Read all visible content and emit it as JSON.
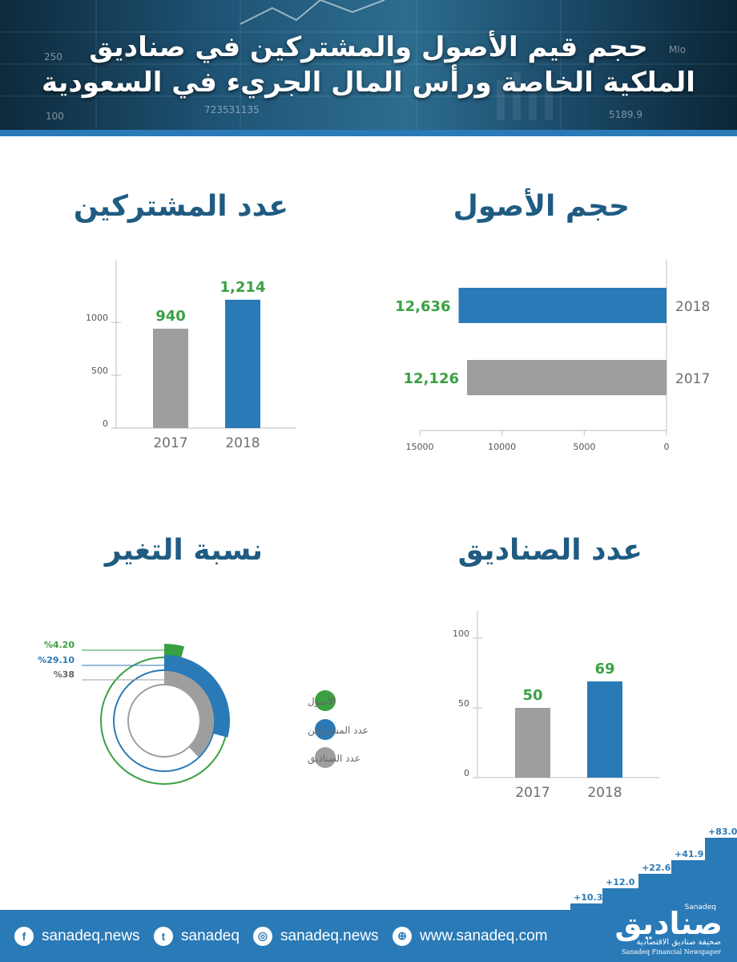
{
  "header": {
    "title_line1": "حجم قيم الأصول والمشتركين في صناديق",
    "title_line2": "الملكية الخاصة ورأس المال الجريء في السعودية",
    "bg_ticks": [
      "250",
      "100",
      "723531135",
      "5189.9",
      "Mlo"
    ]
  },
  "sections": {
    "assets_title": "حجم الأصول",
    "subscribers_title": "عدد المشتركين",
    "funds_title": "عدد الصناديق",
    "change_title": "نسبة التغير"
  },
  "colors": {
    "blue": "#2a7ab7",
    "gray": "#9e9e9e",
    "green": "#3aa142",
    "title": "#1f5b82"
  },
  "chart_data": [
    {
      "id": "assets",
      "type": "bar",
      "orientation": "horizontal",
      "categories": [
        "2018",
        "2017"
      ],
      "values": [
        12636,
        12126
      ],
      "value_labels": [
        "12,636",
        "12,126"
      ],
      "colors": [
        "#2a7ab7",
        "#9e9e9e"
      ],
      "xlim": [
        0,
        15000
      ],
      "x_ticks": [
        "15000",
        "10000",
        "5000",
        "0"
      ],
      "x_tick_values": [
        15000,
        10000,
        5000,
        0
      ]
    },
    {
      "id": "subscribers",
      "type": "bar",
      "categories": [
        "2017",
        "2018"
      ],
      "values": [
        940,
        1214
      ],
      "value_labels": [
        "940",
        "1,214"
      ],
      "colors": [
        "#9e9e9e",
        "#2a7ab7"
      ],
      "ylim": [
        0,
        1380
      ],
      "y_ticks": [
        "0",
        "500",
        "1000"
      ],
      "y_tick_values": [
        0,
        500,
        1000
      ]
    },
    {
      "id": "funds",
      "type": "bar",
      "categories": [
        "2017",
        "2018"
      ],
      "values": [
        50,
        69
      ],
      "value_labels": [
        "50",
        "69"
      ],
      "colors": [
        "#9e9e9e",
        "#2a7ab7"
      ],
      "ylim": [
        0,
        100
      ],
      "y_ticks": [
        "0",
        "50",
        "100"
      ],
      "y_tick_values": [
        0,
        50,
        100
      ]
    },
    {
      "id": "change",
      "type": "pie",
      "series": [
        {
          "name": "الأصول",
          "value": 4.2,
          "label": "%4.20",
          "color": "#3aa142"
        },
        {
          "name": "عدد المشتركين",
          "value": 29.1,
          "label": "%29.10",
          "color": "#2a7ab7"
        },
        {
          "name": "عدد الصناديق",
          "value": 38,
          "label": "%38",
          "color": "#9e9e9e"
        }
      ]
    }
  ],
  "footer": {
    "items": [
      {
        "icon": "facebook-icon",
        "glyph": "f",
        "text": "sanadeq.news"
      },
      {
        "icon": "twitter-icon",
        "glyph": "t",
        "text": "sanadeq"
      },
      {
        "icon": "instagram-icon",
        "glyph": "◎",
        "text": "sanadeq.news"
      },
      {
        "icon": "globe-icon",
        "glyph": "⊕",
        "text": "www.sanadeq.com"
      }
    ],
    "logo_arabic": "صناديق",
    "logo_english": "Sanadeq",
    "logo_sub_ar": "صحيفة صناديق الاقتصادية",
    "logo_sub_en": "Sanadeq Financial Newspaper"
  },
  "steps": [
    "+10.3",
    "+12.0",
    "+22.6",
    "+41.9",
    "+83.0"
  ]
}
